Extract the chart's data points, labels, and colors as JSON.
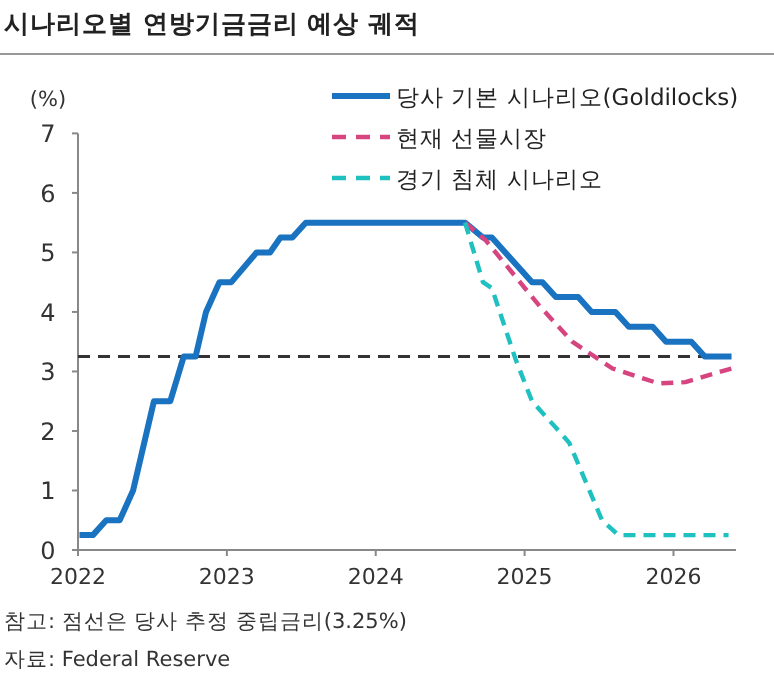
{
  "chart_data": {
    "type": "line",
    "title": "시나리오별 연방기금금리 예상 궤적",
    "ylabel": "(%)",
    "xlim": [
      2022,
      2026.42
    ],
    "xticks": [
      2022,
      2023,
      2024,
      2025,
      2026
    ],
    "ylim": [
      0,
      7
    ],
    "yticks": [
      0,
      1,
      2,
      3,
      4,
      5,
      6,
      7
    ],
    "legend": "top right",
    "marker": "none",
    "series": [
      {
        "name": "당사 기본 시나리오(Goldilocks)",
        "color": "#1a73c0",
        "line_style": "solid",
        "x": [
          2022.01,
          2022.1,
          2022.19,
          2022.28,
          2022.37,
          2022.51,
          2022.62,
          2022.71,
          2022.79,
          2022.86,
          2022.95,
          2023.03,
          2023.2,
          2023.29,
          2023.36,
          2023.44,
          2023.53,
          2024.6,
          2024.72,
          2024.78,
          2025.05,
          2025.12,
          2025.21,
          2025.36,
          2025.45,
          2025.61,
          2025.7,
          2025.86,
          2025.95,
          2026.12,
          2026.21,
          2026.39
        ],
        "values": [
          0.25,
          0.25,
          0.5,
          0.5,
          1.0,
          2.5,
          2.5,
          3.25,
          3.25,
          4.0,
          4.5,
          4.5,
          5.0,
          5.0,
          5.25,
          5.25,
          5.5,
          5.5,
          5.25,
          5.25,
          4.5,
          4.5,
          4.25,
          4.25,
          4.0,
          4.0,
          3.75,
          3.75,
          3.5,
          3.5,
          3.25,
          3.25
        ]
      },
      {
        "name": "현재 선물시장",
        "color": "#d6457f",
        "line_style": "dashed",
        "x": [
          2024.6,
          2024.74,
          2024.92,
          2025.1,
          2025.32,
          2025.59,
          2025.9,
          2026.08,
          2026.39
        ],
        "values": [
          5.5,
          5.2,
          4.65,
          4.1,
          3.5,
          3.05,
          2.8,
          2.82,
          3.05
        ]
      },
      {
        "name": "경기 침체 시나리오",
        "color": "#1fc0c0",
        "line_style": "dashed",
        "x": [
          2024.6,
          2024.72,
          2024.78,
          2024.94,
          2025.05,
          2025.23,
          2025.3,
          2025.52,
          2025.63,
          2026.37
        ],
        "values": [
          5.5,
          4.5,
          4.4,
          3.2,
          2.5,
          2.0,
          1.8,
          0.5,
          0.25,
          0.25
        ]
      }
    ],
    "ref_lines": [
      {
        "axis": "y",
        "value": 3.25,
        "color": "#333333",
        "line_style": "dashed"
      }
    ],
    "annotations": [
      "참고: 점선은 당사 추정 중립금리(3.25%)",
      "자료: Federal Reserve"
    ]
  }
}
